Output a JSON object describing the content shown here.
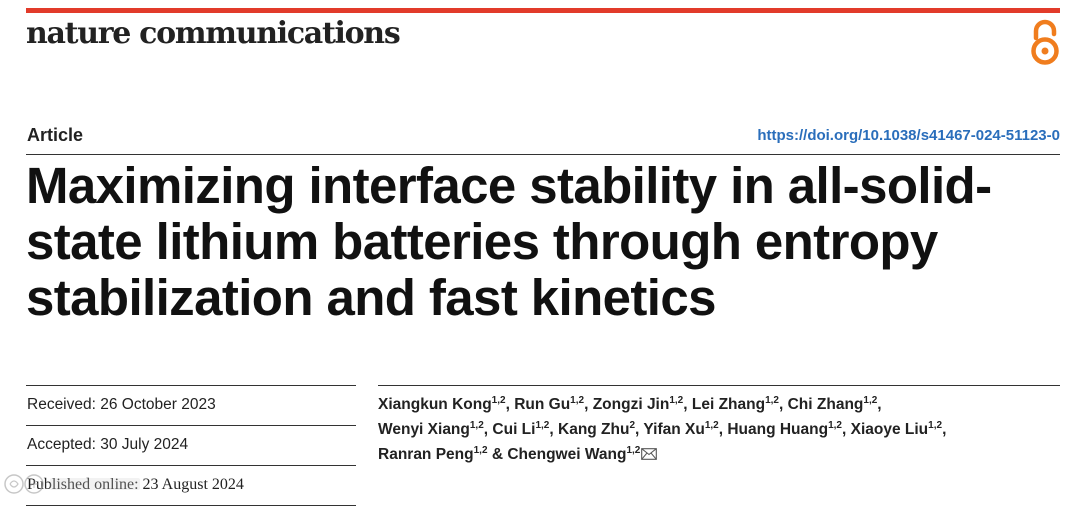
{
  "journal": {
    "name": "nature communications",
    "accent_color": "#e23b2a",
    "open_access_icon": "open-access-icon"
  },
  "article": {
    "type": "Article",
    "doi": "https://doi.org/10.1038/s41467-024-51123-0",
    "title": "Maximizing interface stability in all-solid-state lithium batteries through entropy stabilization and fast kinetics"
  },
  "dates": {
    "received": "Received: 26 October 2023",
    "accepted": "Accepted: 30 July 2024",
    "published": "Published online: 23 August 2024"
  },
  "authors": [
    {
      "name": "Xiangkun Kong",
      "aff": "1,2",
      "sep": ", "
    },
    {
      "name": "Run Gu",
      "aff": "1,2",
      "sep": ", "
    },
    {
      "name": "Zongzi Jin",
      "aff": "1,2",
      "sep": ", "
    },
    {
      "name": "Lei Zhang",
      "aff": "1,2",
      "sep": ", "
    },
    {
      "name": "Chi Zhang",
      "aff": "1,2",
      "sep": ", "
    },
    {
      "name": "Wenyi Xiang",
      "aff": "1,2",
      "sep": ", "
    },
    {
      "name": "Cui Li",
      "aff": "1,2",
      "sep": ", "
    },
    {
      "name": "Kang Zhu",
      "aff": "2",
      "sep": ", "
    },
    {
      "name": "Yifan Xu",
      "aff": "1,2",
      "sep": ", "
    },
    {
      "name": "Huang Huang",
      "aff": "1,2",
      "sep": ", "
    },
    {
      "name": "Xiaoye Liu",
      "aff": "1,2",
      "sep": ", "
    },
    {
      "name": "Ranran Peng",
      "aff": "1,2",
      "sep": " & "
    },
    {
      "name": "Chengwei Wang",
      "aff": "1,2",
      "sep": ""
    }
  ],
  "corresponding_icon": "mail-icon",
  "link_color": "#2a6ebb"
}
